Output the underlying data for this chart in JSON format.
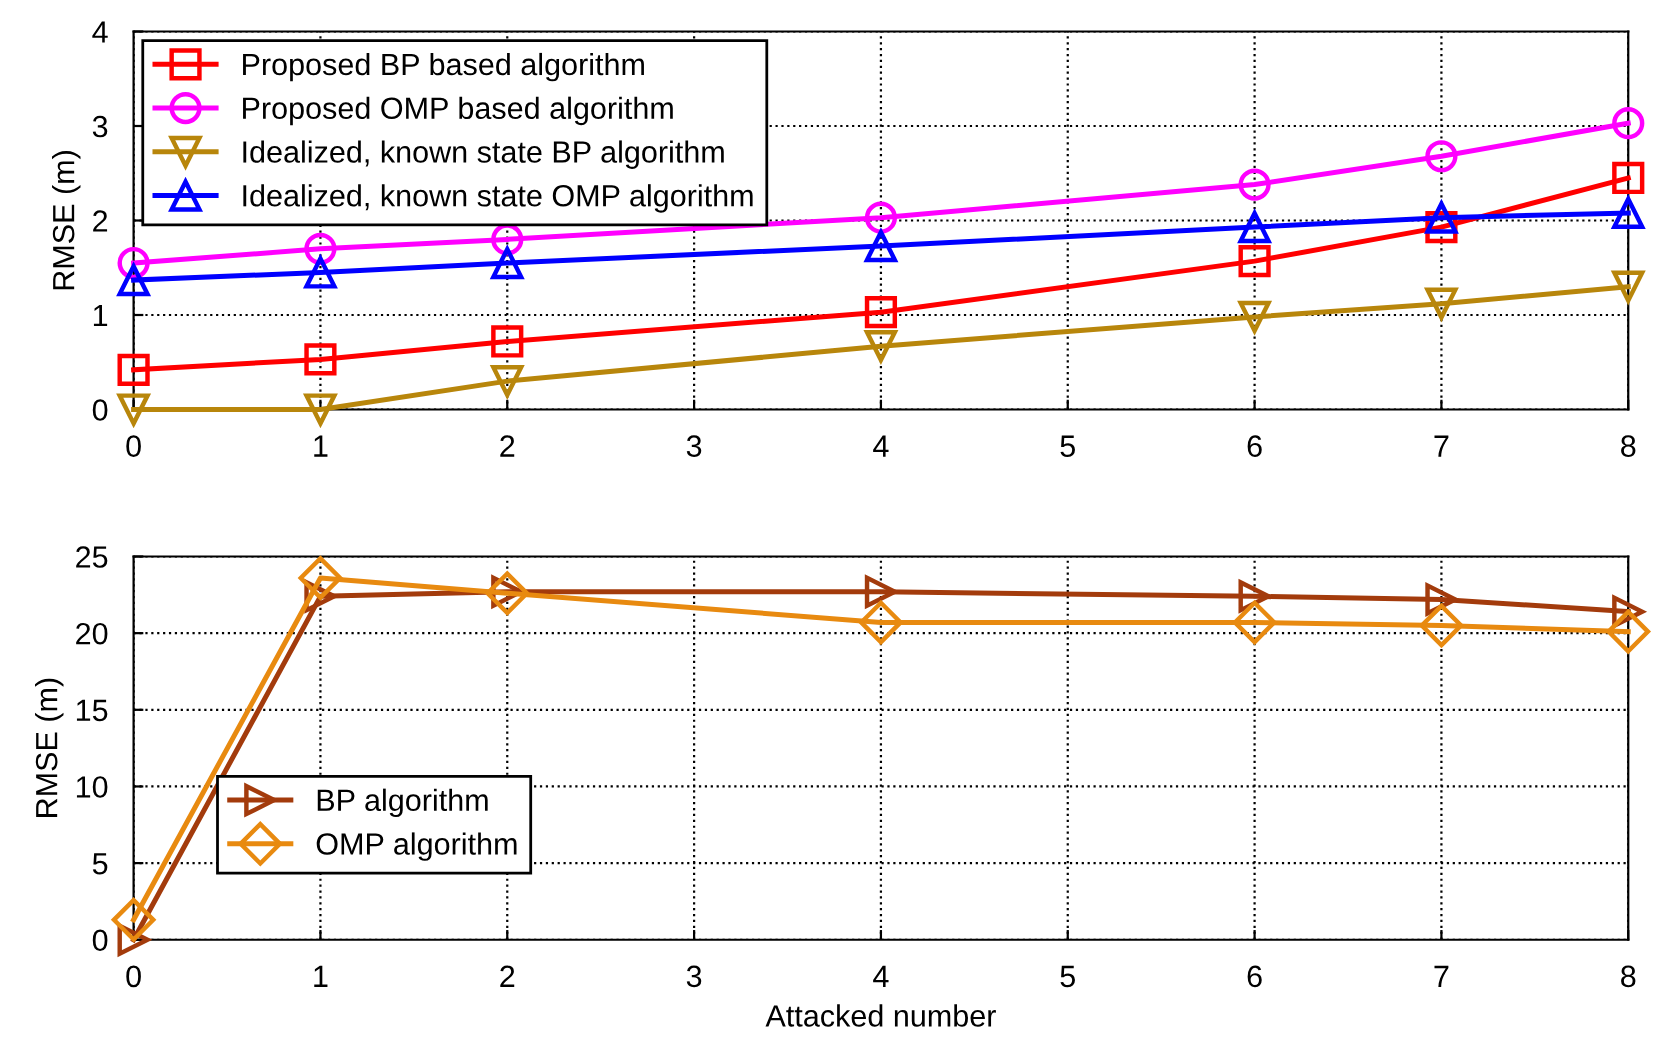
{
  "chart_data": [
    {
      "type": "line",
      "ylabel": "RMSE (m)",
      "xlim": [
        0,
        8
      ],
      "xticks": [
        0,
        1,
        2,
        3,
        4,
        5,
        6,
        7,
        8
      ],
      "ylim": [
        0,
        4
      ],
      "yticks": [
        0,
        1,
        2,
        3,
        4
      ],
      "grid": true,
      "legend": "top left",
      "line_style": "solid",
      "series": [
        {
          "name": "Proposed BP based algorithm",
          "color": "#ff0000",
          "marker": "square",
          "x": [
            0,
            1,
            2,
            4,
            6,
            7,
            8
          ],
          "values": [
            0.42,
            0.53,
            0.72,
            1.03,
            1.57,
            1.93,
            2.45
          ]
        },
        {
          "name": "Proposed OMP based algorithm",
          "color": "#ff00ff",
          "marker": "circle",
          "x": [
            0,
            1,
            2,
            4,
            6,
            7,
            8
          ],
          "values": [
            1.55,
            1.7,
            1.8,
            2.03,
            2.38,
            2.68,
            3.03
          ]
        },
        {
          "name": "Idealized, known state BP algorithm",
          "color": "#b8860b",
          "marker": "triangle_down",
          "x": [
            0,
            1,
            2,
            4,
            6,
            7,
            8
          ],
          "values": [
            0,
            0,
            0.3,
            0.67,
            0.98,
            1.12,
            1.3
          ]
        },
        {
          "name": "Idealized, known state OMP algorithm",
          "color": "#0000ff",
          "marker": "triangle",
          "x": [
            0,
            1,
            2,
            4,
            6,
            7,
            8
          ],
          "values": [
            1.37,
            1.45,
            1.55,
            1.73,
            1.93,
            2.03,
            2.08
          ]
        }
      ]
    },
    {
      "type": "line",
      "xlabel": "Attacked number",
      "ylabel": "RMSE (m)",
      "xlim": [
        0,
        8
      ],
      "xticks": [
        0,
        1,
        2,
        3,
        4,
        5,
        6,
        7,
        8
      ],
      "ylim": [
        0,
        25
      ],
      "yticks": [
        0,
        5,
        10,
        15,
        20,
        25
      ],
      "grid": true,
      "legend": "bottom left",
      "line_style": "solid",
      "series": [
        {
          "name": "BP algorithm",
          "color": "#a33b0c",
          "marker": "triangle_right",
          "x": [
            0,
            1,
            2,
            4,
            6,
            7,
            8
          ],
          "values": [
            0,
            22.4,
            22.7,
            22.7,
            22.4,
            22.2,
            21.4
          ]
        },
        {
          "name": "OMP algorithm",
          "color": "#e88a10",
          "marker": "diamond",
          "x": [
            0,
            1,
            2,
            4,
            6,
            7,
            8
          ],
          "values": [
            1.3,
            23.6,
            22.6,
            20.7,
            20.7,
            20.5,
            20.1
          ]
        }
      ]
    }
  ]
}
